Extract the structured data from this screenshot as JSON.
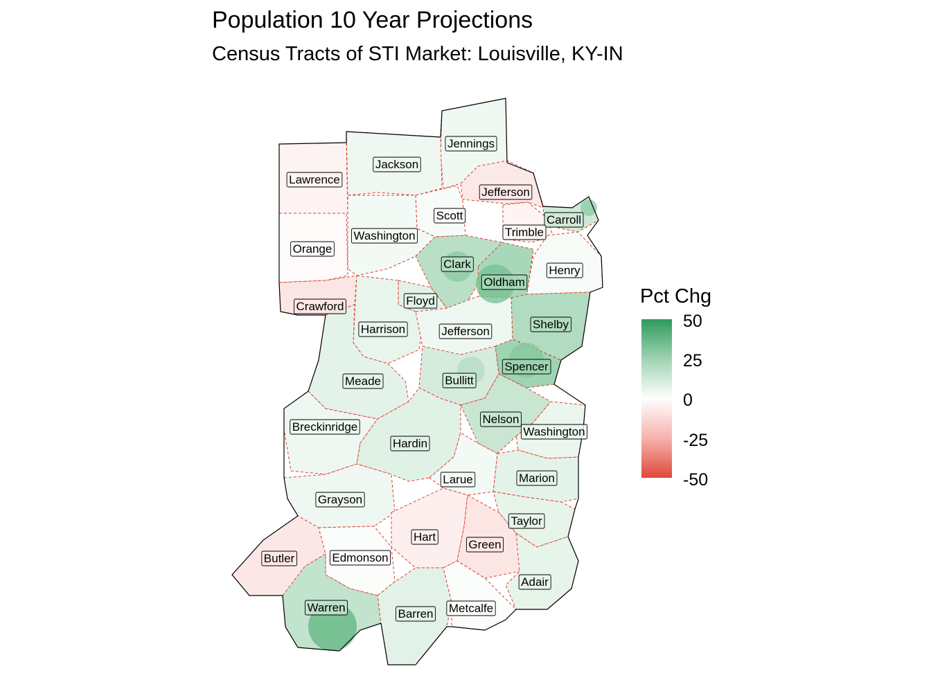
{
  "title": "Population 10 Year Projections",
  "subtitle": "Census Tracts of STI Market: Louisville, KY-IN",
  "legend": {
    "title": "Pct Chg",
    "ticks": [
      "50",
      "25",
      "0",
      "-25",
      "-50"
    ],
    "colors": {
      "high": "#2e9a5c",
      "mid": "#ffffff",
      "low": "#e0483a"
    }
  },
  "counties": [
    {
      "name": "Jennings",
      "fill": "#f0f8f2"
    },
    {
      "name": "Jackson",
      "fill": "#eef7f1"
    },
    {
      "name": "Lawrence",
      "fill": "#fdf3f2"
    },
    {
      "name": "Jefferson",
      "fill": "#fbe9e7"
    },
    {
      "name": "Scott",
      "fill": "#f8fcf9"
    },
    {
      "name": "Carroll",
      "fill": "#cfe9d8"
    },
    {
      "name": "Trimble",
      "fill": "#fdf4f3"
    },
    {
      "name": "Washington",
      "fill": "#f3faf5"
    },
    {
      "name": "Orange",
      "fill": "#fefafa"
    },
    {
      "name": "Henry",
      "fill": "#f7fbf8"
    },
    {
      "name": "Clark",
      "fill": "#b9e0c7"
    },
    {
      "name": "Oldham",
      "fill": "#a7d8b9"
    },
    {
      "name": "Crawford",
      "fill": "#fbe6e4"
    },
    {
      "name": "Floyd",
      "fill": "#e2f2e8"
    },
    {
      "name": "Shelby",
      "fill": "#b2dcc1"
    },
    {
      "name": "Harrison",
      "fill": "#e8f5ec"
    },
    {
      "name": "Jefferson",
      "fill": "#eef7f1"
    },
    {
      "name": "Spencer",
      "fill": "#9ed4b2"
    },
    {
      "name": "Meade",
      "fill": "#e4f3e9"
    },
    {
      "name": "Bullitt",
      "fill": "#d5ecdd"
    },
    {
      "name": "Nelson",
      "fill": "#c9e6d3"
    },
    {
      "name": "Breckinridge",
      "fill": "#eef7f1"
    },
    {
      "name": "Washington",
      "fill": "#eaf6ee"
    },
    {
      "name": "Hardin",
      "fill": "#e0f1e6"
    },
    {
      "name": "Marion",
      "fill": "#e4f3e9"
    },
    {
      "name": "Larue",
      "fill": "#f3faf5"
    },
    {
      "name": "Grayson",
      "fill": "#eef7f1"
    },
    {
      "name": "Taylor",
      "fill": "#e6f4ea"
    },
    {
      "name": "Hart",
      "fill": "#fcefee"
    },
    {
      "name": "Green",
      "fill": "#fbe6e4"
    },
    {
      "name": "Butler",
      "fill": "#fbe8e6"
    },
    {
      "name": "Edmonson",
      "fill": "#fbfdfb"
    },
    {
      "name": "Adair",
      "fill": "#e6f4ea"
    },
    {
      "name": "Warren",
      "fill": "#c2e3ce"
    },
    {
      "name": "Barren",
      "fill": "#e2f2e8"
    },
    {
      "name": "Metcalfe",
      "fill": "#fbfdfb"
    }
  ]
}
